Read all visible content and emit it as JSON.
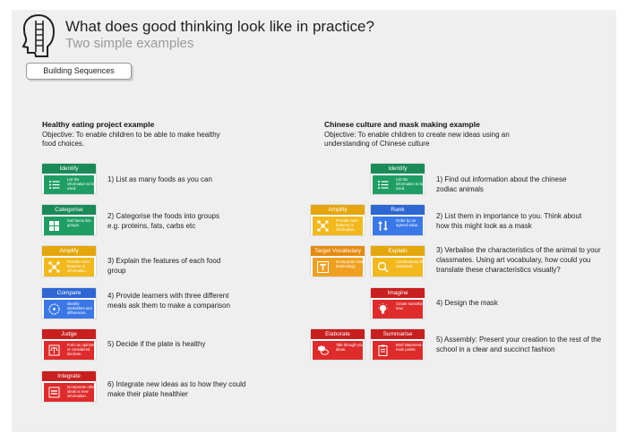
{
  "header": {
    "title": "What does good thinking look like in practice?",
    "subtitle": "Two simple examples",
    "button_label": "Building Sequences"
  },
  "left": {
    "title": "Healthy eating project example",
    "objective": "Objective: To enable children to be able to make healthy food choices.",
    "cards": [
      {
        "title": "Identify",
        "desc": "List the information to be used.",
        "color": "#1f9e64",
        "icon": "list-icon"
      },
      {
        "title": "Categorise",
        "desc": "Sort items into groups.",
        "color": "#1f9e64",
        "icon": "grid-icon"
      },
      {
        "title": "Amplify",
        "desc": "Provide more features or information.",
        "color": "#f2b81c",
        "icon": "network-icon"
      },
      {
        "title": "Compare",
        "desc": "Identify similarities and differences.",
        "color": "#3a78e8",
        "icon": "circle-compare-icon"
      },
      {
        "title": "Judge",
        "desc": "Form an opinion or considered decision.",
        "color": "#df2b2b",
        "icon": "scales-icon"
      },
      {
        "title": "Integrate",
        "desc": "Incorporate others ideas or new information.",
        "color": "#df2b2b",
        "icon": "equals-icon"
      }
    ],
    "steps": [
      "1) List as many foods as you can",
      "2) Categorise the foods into groups e.g. proteins, fats, carbs etc",
      "3) Explain the features of each food group",
      "4) Provide learners with three different meals ask them to make a comparison",
      "5) Decide if the plate is healthy",
      "6) Integrate new ideas as to how they could make their plate healthier"
    ]
  },
  "right": {
    "title": "Chinese culture and mask making example",
    "objective": "Objective: To enable children to create new ideas using an understanding of Chinese culture",
    "cards": [
      {
        "title": "Identify",
        "desc": "List the information to be used.",
        "color": "#1f9e64",
        "icon": "list-icon"
      },
      {
        "title": "Amplify",
        "desc": "Provide more features or information.",
        "color": "#f2b81c",
        "icon": "network-icon"
      },
      {
        "title": "Rank",
        "desc": "Order by an agreed value.",
        "color": "#3a78e8",
        "icon": "sort-arrows-icon"
      },
      {
        "title": "Target Vocabulary",
        "desc": "Incorporate new terminology.",
        "color": "#f0a020",
        "icon": "text-icon"
      },
      {
        "title": "Explain",
        "desc": "Communicate the essentials.",
        "color": "#f2b81c",
        "icon": "magnifier-icon"
      },
      {
        "title": "Imagine",
        "desc": "Create something new.",
        "color": "#df2b2b",
        "icon": "lightbulb-icon"
      },
      {
        "title": "Elaborate",
        "desc": "Talk through your ideas.",
        "color": "#df2b2b",
        "icon": "speech-icon"
      },
      {
        "title": "Summarise",
        "desc": "Brief statement of main points.",
        "color": "#df2b2b",
        "icon": "clipboard-icon"
      }
    ],
    "steps": [
      "1) Find out information about the chinese zodiac animals",
      "2) List them in importance to you. Think about how this might look as a mask",
      "3) Verbalise the characteristics of the animal to your classmates. Using art vocabulary, how could you translate these characteristics visually?",
      "4) Design the mask",
      "5) Assembly: Present your creation to the rest of the school in a clear and succinct fashion"
    ]
  }
}
